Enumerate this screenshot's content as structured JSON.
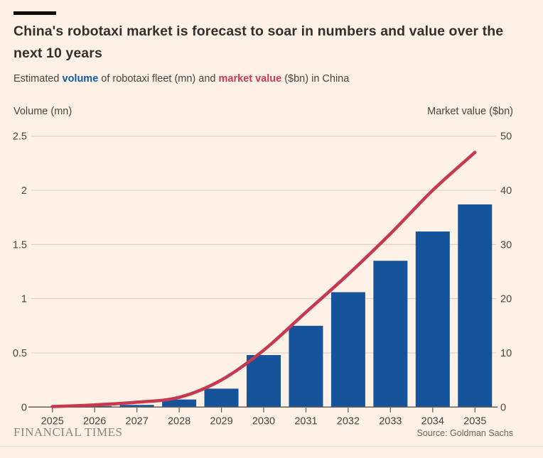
{
  "page": {
    "background": "#fff1e5"
  },
  "colors": {
    "kicker_bar": "#0d0a07",
    "bar_blue": "#15549b",
    "line_red": "#c63a4f",
    "volume_text_blue": "#0f5ba6",
    "value_text_red": "#c93a52",
    "gridline": "#d8cec2",
    "axis_line": "#66605c"
  },
  "header": {
    "title": "China's robotaxi market is forecast to soar in numbers and value over the next 10 years",
    "subtitle": {
      "prefix": "Estimated ",
      "volume_label": "volume",
      "middle": " of robotaxi fleet (mn) and ",
      "value_label": "market value",
      "suffix": " ($bn) in China"
    }
  },
  "chart_data": {
    "type": "combo-bar-line-dual-axis",
    "title": "China's robotaxi market is forecast to soar in numbers and value over the next 10 years",
    "subtitle": "Estimated volume of robotaxi fleet (mn) and market value ($bn) in China",
    "categories": [
      "2025",
      "2026",
      "2027",
      "2028",
      "2029",
      "2030",
      "2031",
      "2032",
      "2033",
      "2034",
      "2035"
    ],
    "series": [
      {
        "name": "volume",
        "type": "bar",
        "axis": "left",
        "color": "#15549b",
        "values": [
          0.005,
          0.01,
          0.02,
          0.07,
          0.17,
          0.48,
          0.75,
          1.06,
          1.35,
          1.62,
          1.87
        ]
      },
      {
        "name": "market value",
        "type": "line",
        "axis": "right",
        "color": "#c63a4f",
        "values": [
          0.1,
          0.4,
          0.9,
          1.8,
          5,
          10.5,
          17.5,
          24.5,
          32,
          40,
          47
        ]
      }
    ],
    "left_axis": {
      "title": "Volume (mn)",
      "range": [
        0,
        2.5
      ],
      "tick_labels": [
        "0",
        "0.5",
        "1",
        "1.5",
        "2",
        "2.5"
      ]
    },
    "right_axis": {
      "title": "Market value ($bn)",
      "range": [
        0,
        50
      ],
      "tick_labels": [
        "0",
        "10",
        "20",
        "30",
        "40",
        "50"
      ]
    },
    "grid": true,
    "legend": "inline-in-subtitle"
  },
  "footer": {
    "brand": "FINANCIAL TIMES",
    "source": "Source: Goldman Sachs"
  }
}
